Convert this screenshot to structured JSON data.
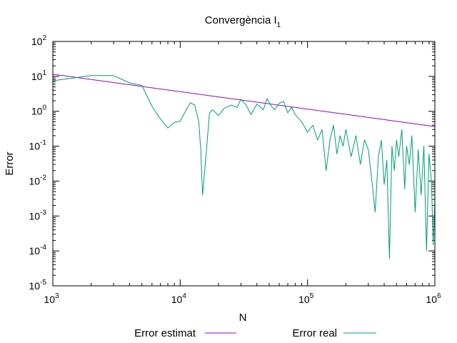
{
  "chart_data": {
    "type": "line",
    "title": "Convergència I",
    "title_subscript": "1",
    "xlabel": "N",
    "ylabel": "Error",
    "x_scale": "log",
    "y_scale": "log",
    "xlim": [
      1000,
      1000000
    ],
    "ylim": [
      1e-05,
      100
    ],
    "x_ticks": [
      {
        "value": 1000,
        "base": "10",
        "exp": "3"
      },
      {
        "value": 10000,
        "base": "10",
        "exp": "4"
      },
      {
        "value": 100000,
        "base": "10",
        "exp": "5"
      },
      {
        "value": 1000000,
        "base": "10",
        "exp": "6"
      }
    ],
    "y_ticks": [
      {
        "value": 100,
        "base": "10",
        "exp": "2"
      },
      {
        "value": 10,
        "base": "10",
        "exp": "1"
      },
      {
        "value": 1,
        "base": "10",
        "exp": "0"
      },
      {
        "value": 0.1,
        "base": "10",
        "exp": "-1"
      },
      {
        "value": 0.01,
        "base": "10",
        "exp": "-2"
      },
      {
        "value": 0.001,
        "base": "10",
        "exp": "-3"
      },
      {
        "value": 0.0001,
        "base": "10",
        "exp": "-4"
      },
      {
        "value": 1e-05,
        "base": "10",
        "exp": "-5"
      }
    ],
    "legend_placement": "bottom",
    "series": [
      {
        "name": "Error estimat",
        "color": "#9400d3",
        "points": [
          [
            1000,
            11.5
          ],
          [
            1000000,
            0.365
          ]
        ]
      },
      {
        "name": "Error real",
        "color": "#009e73",
        "points": [
          [
            1000,
            7.5
          ],
          [
            2000,
            10.5
          ],
          [
            3000,
            10.5
          ],
          [
            4000,
            6.5
          ],
          [
            5000,
            5.5
          ],
          [
            6000,
            1.4
          ],
          [
            7000,
            0.6
          ],
          [
            8000,
            0.33
          ],
          [
            9000,
            0.48
          ],
          [
            10000,
            0.52
          ],
          [
            11000,
            1.0
          ],
          [
            12000,
            1.75
          ],
          [
            13000,
            1.5
          ],
          [
            14000,
            0.5
          ],
          [
            14500,
            0.08
          ],
          [
            15000,
            0.004
          ],
          [
            16000,
            0.06
          ],
          [
            17000,
            0.9
          ],
          [
            18000,
            1.1
          ],
          [
            20000,
            0.75
          ],
          [
            22000,
            1.2
          ],
          [
            25000,
            1.5
          ],
          [
            28000,
            1.3
          ],
          [
            30000,
            2.2
          ],
          [
            33000,
            1.5
          ],
          [
            36000,
            0.8
          ],
          [
            40000,
            1.6
          ],
          [
            45000,
            1.1
          ],
          [
            48000,
            2.3
          ],
          [
            52000,
            1.4
          ],
          [
            55000,
            1.1
          ],
          [
            60000,
            1.7
          ],
          [
            65000,
            1.9
          ],
          [
            70000,
            0.9
          ],
          [
            75000,
            1.3
          ],
          [
            80000,
            0.8
          ],
          [
            90000,
            0.5
          ],
          [
            100000,
            0.25
          ],
          [
            110000,
            0.4
          ],
          [
            120000,
            0.15
          ],
          [
            130000,
            0.3
          ],
          [
            140000,
            0.02
          ],
          [
            150000,
            0.15
          ],
          [
            160000,
            0.4
          ],
          [
            170000,
            0.06
          ],
          [
            180000,
            0.2
          ],
          [
            190000,
            0.1
          ],
          [
            200000,
            0.3
          ],
          [
            220000,
            0.05
          ],
          [
            240000,
            0.2
          ],
          [
            260000,
            0.03
          ],
          [
            280000,
            0.15
          ],
          [
            300000,
            0.08
          ],
          [
            320000,
            0.01
          ],
          [
            340000,
            0.0013
          ],
          [
            360000,
            0.05
          ],
          [
            380000,
            0.15
          ],
          [
            400000,
            0.008
          ],
          [
            420000,
            0.04
          ],
          [
            440000,
            6e-05
          ],
          [
            460000,
            0.1
          ],
          [
            480000,
            0.02
          ],
          [
            500000,
            0.15
          ],
          [
            520000,
            0.05
          ],
          [
            550000,
            0.3
          ],
          [
            580000,
            0.006
          ],
          [
            600000,
            0.1
          ],
          [
            630000,
            0.03
          ],
          [
            660000,
            0.2
          ],
          [
            700000,
            0.0013
          ],
          [
            740000,
            0.08
          ],
          [
            780000,
            0.004
          ],
          [
            820000,
            0.1
          ],
          [
            860000,
            0.0001
          ],
          [
            900000,
            0.06
          ],
          [
            940000,
            0.01
          ],
          [
            970000,
            0.00015
          ],
          [
            1000000,
            0.0025
          ]
        ]
      }
    ]
  }
}
